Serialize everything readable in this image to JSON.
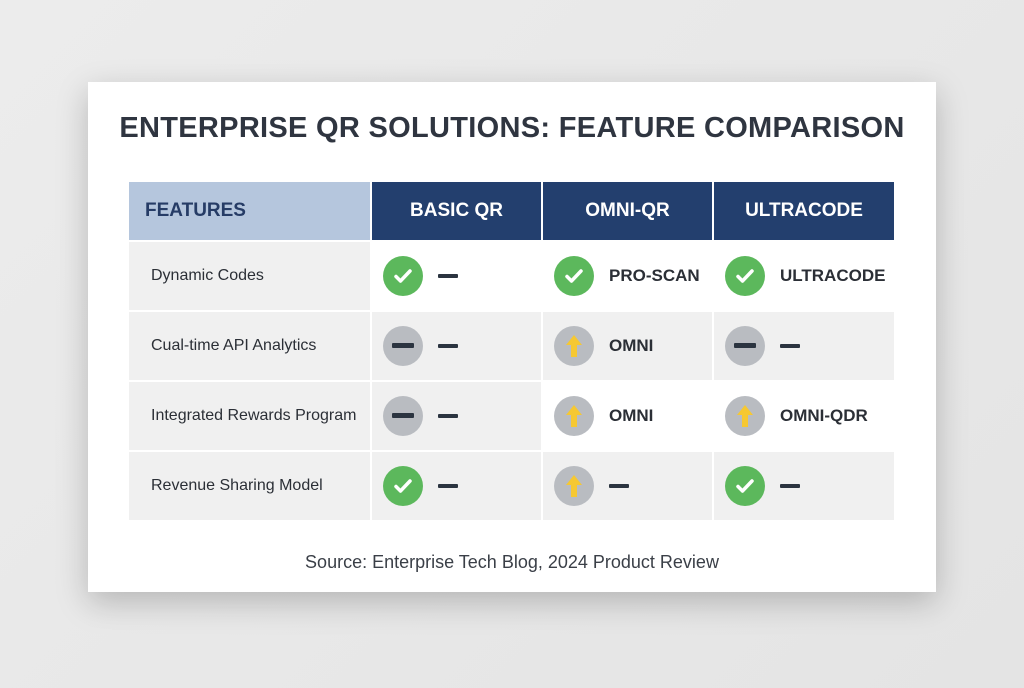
{
  "title": "ENTERPRISE QR SOLUTIONS: FEATURE COMPARISON",
  "columns": [
    "FEATURES",
    "BASIC QR",
    "OMNI-QR",
    "ULTRACODE"
  ],
  "colors": {
    "header": "#233f6e",
    "features_header": "#b5c6dd",
    "check": "#5cb85c",
    "neutral": "#b9bcc1",
    "arrow": "#f6c832"
  },
  "rows": [
    {
      "feature": "Dynamic Codes",
      "cells": [
        {
          "icon": "check",
          "text": "—"
        },
        {
          "icon": "check",
          "text": "PRO-SCAN"
        },
        {
          "icon": "check",
          "text": "ULTRACODE"
        }
      ]
    },
    {
      "feature": "Cual-time API Analytics",
      "cells": [
        {
          "icon": "none",
          "text": "—"
        },
        {
          "icon": "up",
          "text": "OMNI"
        },
        {
          "icon": "none",
          "text": "—"
        }
      ]
    },
    {
      "feature": "Integrated Rewards Program",
      "cells": [
        {
          "icon": "none",
          "text": "—"
        },
        {
          "icon": "up",
          "text": "OMNI"
        },
        {
          "icon": "up",
          "text": "OMNI-QDR"
        }
      ]
    },
    {
      "feature": "Revenue Sharing Model",
      "cells": [
        {
          "icon": "check",
          "text": "—"
        },
        {
          "icon": "up",
          "text": "—"
        },
        {
          "icon": "check",
          "text": "—"
        }
      ]
    }
  ],
  "source": "Source: Enterprise Tech Blog, 2024 Product Review"
}
